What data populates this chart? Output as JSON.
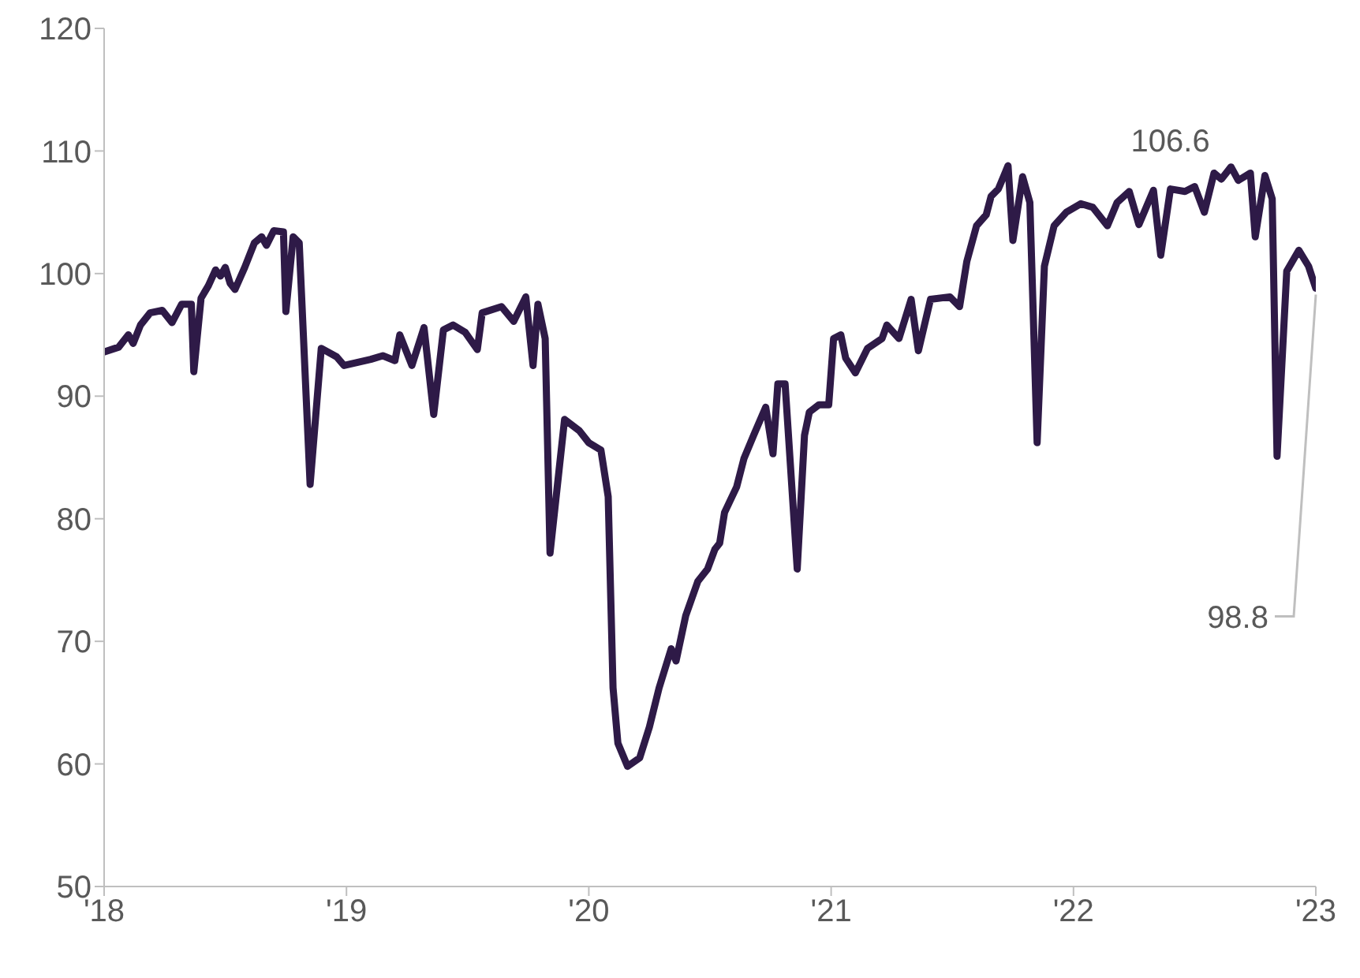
{
  "chart_data": {
    "type": "line",
    "x": [
      2018.0,
      2018.06,
      2018.1,
      2018.12,
      2018.15,
      2018.19,
      2018.24,
      2018.28,
      2018.32,
      2018.36,
      2018.37,
      2018.4,
      2018.43,
      2018.46,
      2018.48,
      2018.5,
      2018.52,
      2018.54,
      2018.58,
      2018.62,
      2018.65,
      2018.67,
      2018.7,
      2018.74,
      2018.75,
      2018.78,
      2018.805,
      2018.85,
      2018.896,
      2018.96,
      2018.99,
      2019.1,
      2019.15,
      2019.2,
      2019.22,
      2019.27,
      2019.32,
      2019.36,
      2019.4,
      2019.44,
      2019.49,
      2019.54,
      2019.56,
      2019.64,
      2019.69,
      2019.74,
      2019.77,
      2019.79,
      2019.82,
      2019.84,
      2019.9,
      2019.96,
      2020.0,
      2020.05,
      2020.08,
      2020.1,
      2020.12,
      2020.16,
      2020.21,
      2020.25,
      2020.29,
      2020.34,
      2020.36,
      2020.4,
      2020.45,
      2020.49,
      2020.52,
      2020.54,
      2020.56,
      2020.61,
      2020.64,
      2020.68,
      2020.73,
      2020.76,
      2020.78,
      2020.81,
      2020.86,
      2020.89,
      2020.91,
      2020.95,
      2020.99,
      2021.01,
      2021.04,
      2021.06,
      2021.1,
      2021.15,
      2021.21,
      2021.23,
      2021.28,
      2021.33,
      2021.36,
      2021.41,
      2021.49,
      2021.53,
      2021.56,
      2021.6,
      2021.64,
      2021.66,
      2021.69,
      2021.73,
      2021.75,
      2021.79,
      2021.82,
      2021.85,
      2021.88,
      2021.92,
      2021.97,
      2022.03,
      2022.08,
      2022.14,
      2022.18,
      2022.23,
      2022.27,
      2022.33,
      2022.36,
      2022.4,
      2022.46,
      2022.5,
      2022.54,
      2022.58,
      2022.61,
      2022.65,
      2022.68,
      2022.73,
      2022.75,
      2022.79,
      2022.82,
      2022.84,
      2022.88,
      2022.93,
      2022.97,
      2023.0
    ],
    "series": [
      {
        "color": "#2e1a47",
        "values": [
          93.6,
          94.0,
          95.0,
          94.3,
          95.8,
          96.8,
          97.0,
          96.0,
          97.5,
          97.5,
          92.0,
          98.0,
          99.0,
          100.3,
          99.8,
          100.5,
          99.2,
          98.7,
          100.5,
          102.5,
          103.0,
          102.3,
          103.5,
          103.4,
          96.9,
          103.0,
          102.5,
          82.8,
          93.9,
          93.2,
          92.5,
          93.0,
          93.3,
          92.9,
          95.0,
          92.5,
          95.6,
          88.5,
          95.4,
          95.8,
          95.2,
          93.8,
          96.8,
          97.3,
          96.1,
          98.1,
          92.5,
          97.5,
          94.7,
          77.2,
          88.1,
          87.2,
          86.2,
          85.6,
          81.8,
          66.2,
          61.7,
          59.8,
          60.5,
          63.0,
          66.2,
          69.4,
          68.4,
          72.1,
          74.9,
          75.9,
          77.5,
          78.0,
          80.5,
          82.6,
          84.9,
          86.8,
          89.1,
          85.3,
          91.0,
          91.0,
          75.9,
          86.8,
          88.7,
          89.3,
          89.3,
          94.7,
          95.0,
          93.1,
          91.9,
          93.9,
          94.7,
          95.8,
          94.7,
          97.9,
          93.7,
          97.9,
          98.1,
          97.3,
          101.0,
          103.9,
          104.8,
          106.3,
          106.9,
          108.8,
          102.7,
          107.9,
          105.8,
          86.2,
          100.6,
          103.9,
          105.0,
          105.7,
          105.4,
          103.9,
          105.8,
          106.7,
          104.0,
          106.8,
          101.5,
          106.9,
          106.7,
          107.1,
          105.0,
          108.2,
          107.7,
          108.7,
          107.6,
          108.2,
          103.0,
          108.0,
          106.1,
          85.1,
          100.2,
          101.9,
          100.6,
          98.8
        ]
      }
    ],
    "xlim": [
      2018,
      2023
    ],
    "xticks": [
      {
        "value": 2018,
        "label": "'18"
      },
      {
        "value": 2019,
        "label": "'19"
      },
      {
        "value": 2020,
        "label": "'20"
      },
      {
        "value": 2021,
        "label": "'21"
      },
      {
        "value": 2022,
        "label": "'22"
      },
      {
        "value": 2023,
        "label": "'23"
      }
    ],
    "ylim": [
      50,
      120
    ],
    "yticks": [
      50,
      60,
      70,
      80,
      90,
      100,
      110,
      120
    ],
    "grid": false,
    "legend": false,
    "marker": "none",
    "line_style": "solid",
    "annotations": [
      {
        "text": "106.6",
        "x": 2022.4,
        "y": 106.6
      },
      {
        "text": "98.8",
        "x": 2023.0,
        "y": 98.8
      }
    ]
  }
}
